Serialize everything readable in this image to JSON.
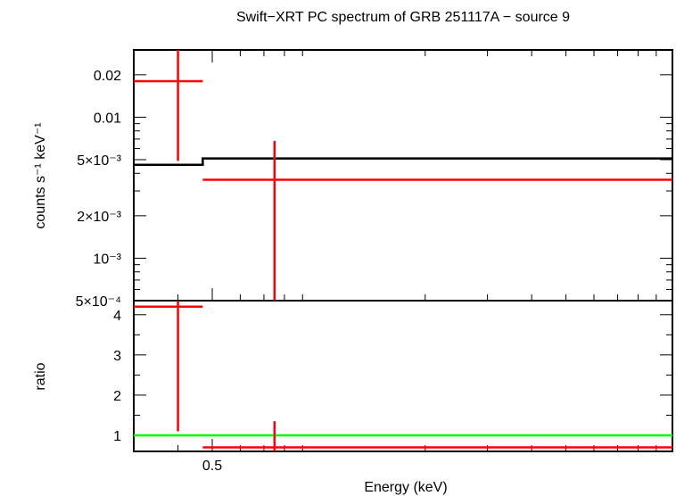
{
  "chart_data": [
    {
      "type": "scatter",
      "panel": "spectrum",
      "title": "Swift−XRT PC spectrum of GRB 251117A − source 9",
      "ylabel": "counts s⁻¹ keV⁻¹",
      "xlabel": "",
      "xscale": "log",
      "yscale": "log",
      "xlim": [
        0.3,
        10
      ],
      "ylim": [
        0.0005,
        0.03
      ],
      "yticks": [
        {
          "value": 0.02,
          "label": "0.02"
        },
        {
          "value": 0.01,
          "label": "0.01"
        },
        {
          "value": 0.005,
          "label": "5×10⁻³"
        },
        {
          "value": 0.002,
          "label": "2×10⁻³"
        },
        {
          "value": 0.001,
          "label": "10⁻³"
        },
        {
          "value": 0.0005,
          "label": "5×10⁻⁴"
        }
      ],
      "data": {
        "color": "#ff0000",
        "points": [
          {
            "x": 0.4,
            "xlo": 0.3,
            "xhi": 0.47,
            "y": 0.018,
            "ylo": 0.0049,
            "yhi": 0.03
          },
          {
            "x": 0.75,
            "xlo": 0.47,
            "xhi": 10,
            "y": 0.0036,
            "ylo": 0.0005,
            "yhi": 0.0068
          }
        ]
      },
      "model": {
        "color": "#000000",
        "steps": [
          {
            "xlo": 0.3,
            "xhi": 0.47,
            "y": 0.0046
          },
          {
            "xlo": 0.47,
            "xhi": 10,
            "y": 0.0051
          }
        ]
      }
    },
    {
      "type": "scatter",
      "panel": "ratio",
      "ylabel": "ratio",
      "xlabel": "Energy (keV)",
      "xscale": "log",
      "xlim": [
        0.3,
        10
      ],
      "ylim": [
        0.6,
        4.35
      ],
      "yticks": [
        1,
        2,
        3,
        4
      ],
      "xticks": [
        {
          "value": 0.5,
          "label": "0.5"
        }
      ],
      "data": {
        "color": "#ff0000",
        "points": [
          {
            "x": 0.4,
            "xlo": 0.3,
            "xhi": 0.47,
            "y": 4.2,
            "ylo": 1.1,
            "yhi": 4.35
          },
          {
            "x": 0.75,
            "xlo": 0.47,
            "xhi": 10,
            "y": 0.7,
            "ylo": 0.6,
            "yhi": 1.35
          }
        ]
      },
      "reference_line": {
        "y": 1,
        "color": "#00ff00"
      }
    }
  ]
}
